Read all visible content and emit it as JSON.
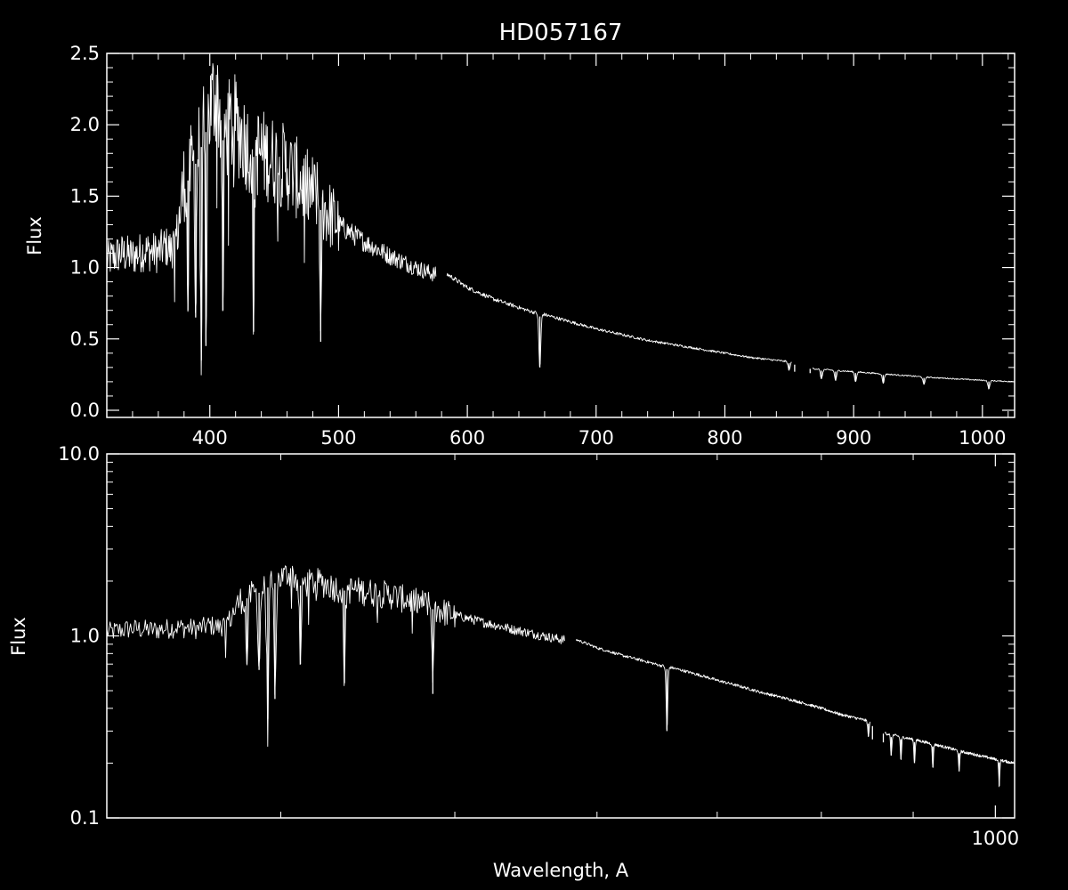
{
  "title": "HD057167",
  "colors": {
    "background": "#000000",
    "foreground": "#ffffff"
  },
  "chart_data": [
    {
      "type": "line",
      "panel": "top",
      "title": "HD057167",
      "xlabel": "",
      "ylabel": "Flux",
      "x_scale": "linear",
      "y_scale": "linear",
      "xlim": [
        320,
        1025
      ],
      "ylim": [
        -0.05,
        2.5
      ],
      "x_ticks": [
        {
          "value": 400,
          "label": "400"
        },
        {
          "value": 500,
          "label": "500"
        },
        {
          "value": 600,
          "label": "600"
        },
        {
          "value": 700,
          "label": "700"
        },
        {
          "value": 800,
          "label": "800"
        },
        {
          "value": 900,
          "label": "900"
        },
        {
          "value": 1000,
          "label": "1000"
        }
      ],
      "y_ticks": [
        {
          "value": 0.0,
          "label": "0.0"
        },
        {
          "value": 0.5,
          "label": "0.5"
        },
        {
          "value": 1.0,
          "label": "1.0"
        },
        {
          "value": 1.5,
          "label": "1.5"
        },
        {
          "value": 2.0,
          "label": "2.0"
        },
        {
          "value": 2.5,
          "label": "2.5"
        }
      ],
      "series": [
        {
          "x": [
            320,
            330,
            340,
            350,
            360,
            365,
            370,
            375,
            380,
            390,
            400,
            405,
            410,
            420,
            430,
            440,
            450,
            460,
            470,
            480,
            490,
            500,
            520,
            540,
            560,
            575,
            585,
            600,
            620,
            640,
            650,
            660,
            680,
            700,
            720,
            740,
            760,
            780,
            800,
            820,
            850,
            870,
            900,
            930,
            960,
            1000,
            1025
          ],
          "y": [
            1.05,
            1.1,
            1.08,
            1.12,
            1.1,
            1.15,
            1.12,
            1.25,
            1.6,
            1.8,
            2.1,
            2.25,
            1.95,
            2.0,
            1.85,
            1.8,
            1.75,
            1.7,
            1.6,
            1.52,
            1.4,
            1.3,
            1.18,
            1.08,
            1.0,
            0.95,
            0.95,
            0.86,
            0.78,
            0.72,
            0.69,
            0.67,
            0.62,
            0.57,
            0.53,
            0.49,
            0.46,
            0.43,
            0.4,
            0.37,
            0.34,
            0.29,
            0.27,
            0.25,
            0.23,
            0.21,
            0.2
          ]
        }
      ],
      "absorption_lines": [
        {
          "x": 383,
          "y": 0.7
        },
        {
          "x": 389,
          "y": 0.65
        },
        {
          "x": 393.4,
          "y": 0.35
        },
        {
          "x": 397,
          "y": 0.45
        },
        {
          "x": 410.2,
          "y": 0.7
        },
        {
          "x": 434,
          "y": 0.55
        },
        {
          "x": 486.1,
          "y": 0.48
        },
        {
          "x": 656.3,
          "y": 0.3
        },
        {
          "x": 849.8,
          "y": 0.28
        },
        {
          "x": 854.2,
          "y": 0.27
        },
        {
          "x": 866.2,
          "y": 0.26
        },
        {
          "x": 875,
          "y": 0.22
        },
        {
          "x": 886,
          "y": 0.21
        },
        {
          "x": 901.5,
          "y": 0.2
        },
        {
          "x": 923,
          "y": 0.19
        },
        {
          "x": 954.6,
          "y": 0.18
        },
        {
          "x": 1005,
          "y": 0.15
        }
      ],
      "gaps": [
        [
          576,
          584
        ],
        [
          852,
          868
        ]
      ],
      "grid": false
    },
    {
      "type": "line",
      "panel": "bottom",
      "title": "",
      "xlabel": "Wavelength, A",
      "ylabel": "Flux",
      "x_scale": "log",
      "y_scale": "log",
      "xlim": [
        320,
        1025
      ],
      "ylim": [
        0.1,
        10.0
      ],
      "x_ticks": [
        {
          "value": 1000,
          "label": "1000"
        }
      ],
      "y_ticks": [
        {
          "value": 0.1,
          "label": "0.1"
        },
        {
          "value": 1.0,
          "label": "1.0"
        },
        {
          "value": 10.0,
          "label": "10.0"
        }
      ],
      "series": [
        {
          "x": [
            320,
            330,
            340,
            350,
            360,
            365,
            370,
            375,
            380,
            390,
            400,
            405,
            410,
            420,
            430,
            440,
            450,
            460,
            470,
            480,
            490,
            500,
            520,
            540,
            560,
            575,
            585,
            600,
            620,
            640,
            650,
            660,
            680,
            700,
            720,
            740,
            760,
            780,
            800,
            820,
            850,
            870,
            900,
            930,
            960,
            1000,
            1025
          ],
          "y": [
            1.05,
            1.1,
            1.08,
            1.12,
            1.1,
            1.15,
            1.12,
            1.25,
            1.6,
            1.8,
            2.1,
            2.25,
            1.95,
            2.0,
            1.85,
            1.8,
            1.75,
            1.7,
            1.6,
            1.52,
            1.4,
            1.3,
            1.18,
            1.08,
            1.0,
            0.95,
            0.95,
            0.86,
            0.78,
            0.72,
            0.69,
            0.67,
            0.62,
            0.57,
            0.53,
            0.49,
            0.46,
            0.43,
            0.4,
            0.37,
            0.34,
            0.29,
            0.27,
            0.25,
            0.23,
            0.21,
            0.2
          ]
        }
      ],
      "absorption_lines": [
        {
          "x": 383,
          "y": 0.7
        },
        {
          "x": 389,
          "y": 0.65
        },
        {
          "x": 393.4,
          "y": 0.35
        },
        {
          "x": 397,
          "y": 0.45
        },
        {
          "x": 410.2,
          "y": 0.7
        },
        {
          "x": 434,
          "y": 0.55
        },
        {
          "x": 486.1,
          "y": 0.48
        },
        {
          "x": 656.3,
          "y": 0.3
        },
        {
          "x": 849.8,
          "y": 0.28
        },
        {
          "x": 854.2,
          "y": 0.27
        },
        {
          "x": 866.2,
          "y": 0.26
        },
        {
          "x": 875,
          "y": 0.22
        },
        {
          "x": 886,
          "y": 0.21
        },
        {
          "x": 901.5,
          "y": 0.2
        },
        {
          "x": 923,
          "y": 0.19
        },
        {
          "x": 954.6,
          "y": 0.18
        },
        {
          "x": 1005,
          "y": 0.15
        }
      ],
      "gaps": [
        [
          576,
          584
        ],
        [
          852,
          868
        ]
      ],
      "grid": false
    }
  ]
}
